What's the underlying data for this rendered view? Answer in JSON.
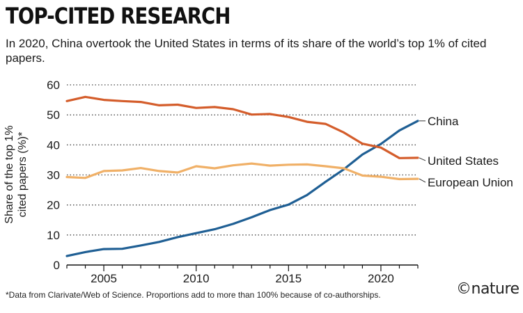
{
  "header": {
    "title": "TOP-CITED RESEARCH",
    "subtitle": "In 2020, China overtook the United States in terms of its share of the world’s top 1% of cited papers."
  },
  "footnote": "*Data from Clarivate/Web of Science. Proportions add to more than 100% because of co-authorships.",
  "brand": "©nature",
  "chart_data": {
    "type": "line",
    "ylabel": "Share of the top 1% cited papers (%)*",
    "ylim": [
      0,
      60
    ],
    "xlim": [
      2003,
      2022
    ],
    "yticks": [
      0,
      10,
      20,
      30,
      40,
      50,
      60
    ],
    "xticks": [
      2005,
      2010,
      2015,
      2020
    ],
    "grid": "horizontal dotted",
    "legend": "direct labels at line ends",
    "x": [
      2003,
      2004,
      2005,
      2006,
      2007,
      2008,
      2009,
      2010,
      2011,
      2012,
      2013,
      2014,
      2015,
      2016,
      2017,
      2018,
      2019,
      2020,
      2021,
      2022
    ],
    "series": [
      {
        "name": "China",
        "color": "#1f5f94",
        "values": [
          3.0,
          4.3,
          5.3,
          5.4,
          6.5,
          7.7,
          9.3,
          10.6,
          11.9,
          13.7,
          15.9,
          18.3,
          20.1,
          23.3,
          27.7,
          31.9,
          36.8,
          40.3,
          44.8,
          48.0
        ]
      },
      {
        "name": "United States",
        "color": "#d45d2b",
        "values": [
          54.6,
          56.0,
          55.0,
          54.6,
          54.3,
          53.2,
          53.4,
          52.3,
          52.6,
          51.9,
          50.1,
          50.3,
          49.3,
          47.7,
          47.0,
          44.1,
          40.4,
          39.1,
          35.6,
          35.7
        ]
      },
      {
        "name": "European Union",
        "color": "#f0b067",
        "values": [
          29.3,
          29.0,
          31.3,
          31.5,
          32.3,
          31.3,
          30.8,
          32.9,
          32.2,
          33.2,
          33.8,
          33.1,
          33.4,
          33.5,
          32.9,
          32.2,
          29.8,
          29.4,
          28.6,
          28.7
        ]
      }
    ]
  }
}
